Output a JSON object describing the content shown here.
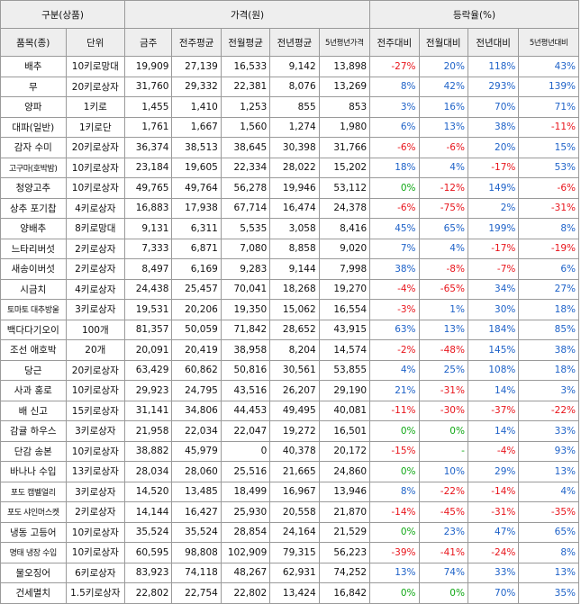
{
  "header": {
    "group_category": "구분(상품)",
    "group_price": "가격(원)",
    "group_change": "등락율(%)",
    "col_item": "품목(종)",
    "col_unit": "단위",
    "col_today": "금주",
    "col_prev_week": "전주평균",
    "col_prev_month": "전월평균",
    "col_prev_year": "전년평균",
    "col_5yr": "5년평년가격",
    "col_vs_week": "전주대비",
    "col_vs_month": "전월대비",
    "col_vs_year": "전년대비",
    "col_vs_5yr": "5년평년대비"
  },
  "colors": {
    "negative": "#e8141b",
    "positive": "#1e62c8",
    "zero": "#10a815"
  },
  "rows": [
    {
      "item": "배추",
      "unit": "10키로망대",
      "today": "19,909",
      "pw": "27,139",
      "pm": "16,533",
      "py": "9,142",
      "p5": "13,898",
      "cw": "-27%",
      "cm": "20%",
      "cy": "118%",
      "c5": "43%"
    },
    {
      "item": "무",
      "unit": "20키로상자",
      "today": "31,760",
      "pw": "29,332",
      "pm": "22,381",
      "py": "8,076",
      "p5": "13,269",
      "cw": "8%",
      "cm": "42%",
      "cy": "293%",
      "c5": "139%"
    },
    {
      "item": "양파",
      "unit": "1키로",
      "today": "1,455",
      "pw": "1,410",
      "pm": "1,253",
      "py": "855",
      "p5": "853",
      "cw": "3%",
      "cm": "16%",
      "cy": "70%",
      "c5": "71%"
    },
    {
      "item": "대파(일반)",
      "unit": "1키로단",
      "today": "1,761",
      "pw": "1,667",
      "pm": "1,560",
      "py": "1,274",
      "p5": "1,980",
      "cw": "6%",
      "cm": "13%",
      "cy": "38%",
      "c5": "-11%"
    },
    {
      "item": "감자 수미",
      "unit": "20키로상자",
      "today": "36,374",
      "pw": "38,513",
      "pm": "38,645",
      "py": "30,398",
      "p5": "31,766",
      "cw": "-6%",
      "cm": "-6%",
      "cy": "20%",
      "c5": "15%"
    },
    {
      "item": "고구마(호박밤)",
      "unit": "10키로상자",
      "today": "23,184",
      "pw": "19,605",
      "pm": "22,334",
      "py": "28,022",
      "p5": "15,202",
      "cw": "18%",
      "cm": "4%",
      "cy": "-17%",
      "c5": "53%"
    },
    {
      "item": "청양고추",
      "unit": "10키로상자",
      "today": "49,765",
      "pw": "49,764",
      "pm": "56,278",
      "py": "19,946",
      "p5": "53,112",
      "cw": "0%",
      "cm": "-12%",
      "cy": "149%",
      "c5": "-6%"
    },
    {
      "item": "상추 포기찹",
      "unit": "4키로상자",
      "today": "16,883",
      "pw": "17,938",
      "pm": "67,714",
      "py": "16,474",
      "p5": "24,378",
      "cw": "-6%",
      "cm": "-75%",
      "cy": "2%",
      "c5": "-31%"
    },
    {
      "item": "양배추",
      "unit": "8키로망대",
      "today": "9,131",
      "pw": "6,311",
      "pm": "5,535",
      "py": "3,058",
      "p5": "8,416",
      "cw": "45%",
      "cm": "65%",
      "cy": "199%",
      "c5": "8%"
    },
    {
      "item": "느타리버섯",
      "unit": "2키로상자",
      "today": "7,333",
      "pw": "6,871",
      "pm": "7,080",
      "py": "8,858",
      "p5": "9,020",
      "cw": "7%",
      "cm": "4%",
      "cy": "-17%",
      "c5": "-19%"
    },
    {
      "item": "새송이버섯",
      "unit": "2키로상자",
      "today": "8,497",
      "pw": "6,169",
      "pm": "9,283",
      "py": "9,144",
      "p5": "7,998",
      "cw": "38%",
      "cm": "-8%",
      "cy": "-7%",
      "c5": "6%"
    },
    {
      "item": "시금치",
      "unit": "4키로상자",
      "today": "24,438",
      "pw": "25,457",
      "pm": "70,041",
      "py": "18,268",
      "p5": "19,270",
      "cw": "-4%",
      "cm": "-65%",
      "cy": "34%",
      "c5": "27%"
    },
    {
      "item": "토마토 대추방울",
      "unit": "3키로상자",
      "today": "19,531",
      "pw": "20,206",
      "pm": "19,350",
      "py": "15,062",
      "p5": "16,554",
      "cw": "-3%",
      "cm": "1%",
      "cy": "30%",
      "c5": "18%"
    },
    {
      "item": "백다다기오이",
      "unit": "100개",
      "today": "81,357",
      "pw": "50,059",
      "pm": "71,842",
      "py": "28,652",
      "p5": "43,915",
      "cw": "63%",
      "cm": "13%",
      "cy": "184%",
      "c5": "85%"
    },
    {
      "item": "조선 애호박",
      "unit": "20개",
      "today": "20,091",
      "pw": "20,419",
      "pm": "38,958",
      "py": "8,204",
      "p5": "14,574",
      "cw": "-2%",
      "cm": "-48%",
      "cy": "145%",
      "c5": "38%"
    },
    {
      "item": "당근",
      "unit": "20키로상자",
      "today": "63,429",
      "pw": "60,862",
      "pm": "50,816",
      "py": "30,561",
      "p5": "53,855",
      "cw": "4%",
      "cm": "25%",
      "cy": "108%",
      "c5": "18%"
    },
    {
      "item": "사과 홍로",
      "unit": "10키로상자",
      "today": "29,923",
      "pw": "24,795",
      "pm": "43,516",
      "py": "26,207",
      "p5": "29,190",
      "cw": "21%",
      "cm": "-31%",
      "cy": "14%",
      "c5": "3%"
    },
    {
      "item": "배 신고",
      "unit": "15키로상자",
      "today": "31,141",
      "pw": "34,806",
      "pm": "44,453",
      "py": "49,495",
      "p5": "40,081",
      "cw": "-11%",
      "cm": "-30%",
      "cy": "-37%",
      "c5": "-22%"
    },
    {
      "item": "감귤 하우스",
      "unit": "3키로상자",
      "today": "21,958",
      "pw": "22,034",
      "pm": "22,047",
      "py": "19,272",
      "p5": "16,501",
      "cw": "0%",
      "cm": "0%",
      "cy": "14%",
      "c5": "33%"
    },
    {
      "item": "단감 송본",
      "unit": "10키로상자",
      "today": "38,882",
      "pw": "45,979",
      "pm": "0",
      "py": "40,378",
      "p5": "20,172",
      "cw": "-15%",
      "cm": "-",
      "cy": "-4%",
      "c5": "93%"
    },
    {
      "item": "바나나 수입",
      "unit": "13키로상자",
      "today": "28,034",
      "pw": "28,060",
      "pm": "25,516",
      "py": "21,665",
      "p5": "24,860",
      "cw": "0%",
      "cm": "10%",
      "cy": "29%",
      "c5": "13%"
    },
    {
      "item": "포도 캠벨얼리",
      "unit": "3키로상자",
      "today": "14,520",
      "pw": "13,485",
      "pm": "18,499",
      "py": "16,967",
      "p5": "13,946",
      "cw": "8%",
      "cm": "-22%",
      "cy": "-14%",
      "c5": "4%"
    },
    {
      "item": "포도 샤인머스켓",
      "unit": "2키로상자",
      "today": "14,144",
      "pw": "16,427",
      "pm": "25,930",
      "py": "20,558",
      "p5": "21,870",
      "cw": "-14%",
      "cm": "-45%",
      "cy": "-31%",
      "c5": "-35%"
    },
    {
      "item": "냉동 고등어",
      "unit": "10키로상자",
      "today": "35,524",
      "pw": "35,524",
      "pm": "28,854",
      "py": "24,164",
      "p5": "21,529",
      "cw": "0%",
      "cm": "23%",
      "cy": "47%",
      "c5": "65%"
    },
    {
      "item": "명태 냉장 수입",
      "unit": "10키로상자",
      "today": "60,595",
      "pw": "98,808",
      "pm": "102,909",
      "py": "79,315",
      "p5": "56,223",
      "cw": "-39%",
      "cm": "-41%",
      "cy": "-24%",
      "c5": "8%"
    },
    {
      "item": "물오징어",
      "unit": "6키로상자",
      "today": "83,923",
      "pw": "74,118",
      "pm": "48,267",
      "py": "62,931",
      "p5": "74,252",
      "cw": "13%",
      "cm": "74%",
      "cy": "33%",
      "c5": "13%"
    },
    {
      "item": "건세멸치",
      "unit": "1.5키로상자",
      "today": "22,802",
      "pw": "22,754",
      "pm": "22,802",
      "py": "13,424",
      "p5": "16,842",
      "cw": "0%",
      "cm": "0%",
      "cy": "70%",
      "c5": "35%"
    }
  ]
}
